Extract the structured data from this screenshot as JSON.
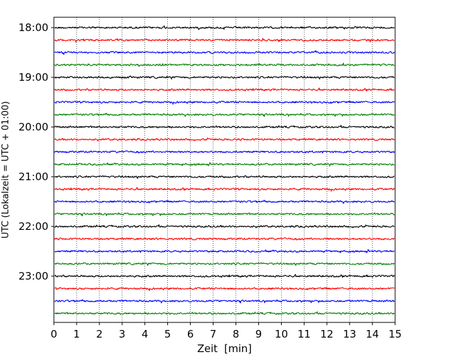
{
  "chart_data": {
    "type": "line",
    "title": "",
    "xlabel": "Zeit  [min]",
    "ylabel": "UTC (Lokalzeit = UTC + 01:00)",
    "xlim": [
      0,
      15
    ],
    "x_ticks": [
      "0",
      "1",
      "2",
      "3",
      "4",
      "5",
      "6",
      "7",
      "8",
      "9",
      "10",
      "11",
      "12",
      "13",
      "14",
      "15"
    ],
    "y_ticks": [
      "18:00",
      "19:00",
      "20:00",
      "21:00",
      "22:00",
      "23:00"
    ],
    "grid": "vertical dotted lines at each minute",
    "trace_interval_minutes": 15,
    "traces": [
      {
        "start": "18:00",
        "color": "#000000"
      },
      {
        "start": "18:15",
        "color": "#ff0000"
      },
      {
        "start": "18:30",
        "color": "#0000ff"
      },
      {
        "start": "18:45",
        "color": "#008000"
      },
      {
        "start": "19:00",
        "color": "#000000"
      },
      {
        "start": "19:15",
        "color": "#ff0000"
      },
      {
        "start": "19:30",
        "color": "#0000ff"
      },
      {
        "start": "19:45",
        "color": "#008000"
      },
      {
        "start": "20:00",
        "color": "#000000"
      },
      {
        "start": "20:15",
        "color": "#ff0000"
      },
      {
        "start": "20:30",
        "color": "#0000ff"
      },
      {
        "start": "20:45",
        "color": "#008000"
      },
      {
        "start": "21:00",
        "color": "#000000"
      },
      {
        "start": "21:15",
        "color": "#ff0000"
      },
      {
        "start": "21:30",
        "color": "#0000ff"
      },
      {
        "start": "21:45",
        "color": "#008000"
      },
      {
        "start": "22:00",
        "color": "#000000"
      },
      {
        "start": "22:15",
        "color": "#ff0000"
      },
      {
        "start": "22:30",
        "color": "#0000ff"
      },
      {
        "start": "22:45",
        "color": "#008000"
      },
      {
        "start": "23:00",
        "color": "#000000"
      },
      {
        "start": "23:15",
        "color": "#ff0000"
      },
      {
        "start": "23:30",
        "color": "#0000ff"
      },
      {
        "start": "23:45",
        "color": "#008000"
      }
    ]
  }
}
